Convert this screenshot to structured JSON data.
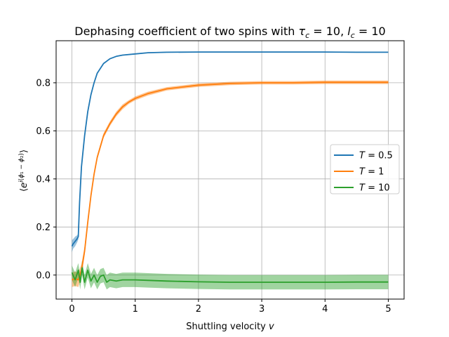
{
  "chart_data": {
    "type": "line",
    "title": "Dephasing coefficient of two spins with τc = 10, lc = 10",
    "title_parts": {
      "prefix": "Dephasing coefficient of two spins with ",
      "tau_sym": "τ",
      "tau_sub": "c",
      "tau_val": " = 10, ",
      "l_sym": "l",
      "l_sub": "c",
      "l_val": " = 10"
    },
    "xlabel": "Shuttling velocity v",
    "xlabel_parts": {
      "text": "Shuttling velocity ",
      "var": "v"
    },
    "ylabel": "⟨e^{i(ϕ1 − ϕ2)}⟩",
    "xlim": [
      -0.25,
      5.25
    ],
    "ylim": [
      -0.1,
      0.975
    ],
    "grid": true,
    "legend_position": "center-right",
    "x_ticks": [
      0,
      1,
      2,
      3,
      4,
      5
    ],
    "x_tick_labels": [
      "0",
      "1",
      "2",
      "3",
      "4",
      "5"
    ],
    "y_ticks": [
      0.0,
      0.2,
      0.4,
      0.6,
      0.8
    ],
    "y_tick_labels": [
      "0.0",
      "0.2",
      "0.4",
      "0.6",
      "0.8"
    ],
    "series": [
      {
        "name": "T = 0.5",
        "legend_label": {
          "var": "T",
          "val": " = 0.5"
        },
        "color": "#1f77b4",
        "x": [
          0,
          0.02,
          0.05,
          0.08,
          0.1,
          0.12,
          0.15,
          0.2,
          0.25,
          0.3,
          0.35,
          0.4,
          0.5,
          0.6,
          0.7,
          0.8,
          1.0,
          1.2,
          1.5,
          2.0,
          2.5,
          3.0,
          3.5,
          4.0,
          4.5,
          5.0
        ],
        "y": [
          0.12,
          0.13,
          0.14,
          0.15,
          0.16,
          0.3,
          0.45,
          0.58,
          0.68,
          0.75,
          0.8,
          0.84,
          0.88,
          0.9,
          0.91,
          0.915,
          0.92,
          0.925,
          0.927,
          0.928,
          0.928,
          0.928,
          0.928,
          0.928,
          0.927,
          0.927
        ],
        "band": [
          0.025,
          0.02,
          0.02,
          0.015,
          0.012,
          0.01,
          0.008,
          0.006,
          0.004,
          0.003,
          0.003,
          0.002,
          0.002,
          0.002,
          0.002,
          0.002,
          0.002,
          0.002,
          0.002,
          0.002,
          0.002,
          0.002,
          0.002,
          0.002,
          0.002,
          0.002
        ]
      },
      {
        "name": "T = 1",
        "legend_label": {
          "var": "T",
          "val": " = 1"
        },
        "color": "#ff7f0e",
        "x": [
          0,
          0.05,
          0.1,
          0.15,
          0.2,
          0.25,
          0.3,
          0.35,
          0.4,
          0.5,
          0.6,
          0.7,
          0.8,
          0.9,
          1.0,
          1.2,
          1.5,
          2.0,
          2.5,
          3.0,
          3.5,
          4.0,
          4.5,
          5.0
        ],
        "y": [
          -0.02,
          -0.015,
          -0.02,
          0.02,
          0.1,
          0.22,
          0.33,
          0.42,
          0.49,
          0.58,
          0.63,
          0.67,
          0.7,
          0.72,
          0.735,
          0.755,
          0.775,
          0.79,
          0.797,
          0.8,
          0.8,
          0.802,
          0.802,
          0.802
        ],
        "band": [
          0.03,
          0.03,
          0.03,
          0.025,
          0.02,
          0.015,
          0.012,
          0.01,
          0.01,
          0.01,
          0.01,
          0.01,
          0.01,
          0.008,
          0.008,
          0.008,
          0.007,
          0.007,
          0.007,
          0.007,
          0.007,
          0.007,
          0.007,
          0.007
        ]
      },
      {
        "name": "T = 10",
        "legend_label": {
          "var": "T",
          "val": " = 10"
        },
        "color": "#2ca02c",
        "x": [
          0,
          0.05,
          0.1,
          0.13,
          0.16,
          0.2,
          0.25,
          0.3,
          0.35,
          0.4,
          0.45,
          0.5,
          0.55,
          0.6,
          0.7,
          0.8,
          1.0,
          1.2,
          1.5,
          2.0,
          2.5,
          3.0,
          3.5,
          4.0,
          4.5,
          5.0
        ],
        "y": [
          0.01,
          -0.02,
          0.02,
          -0.03,
          0.03,
          -0.03,
          0.02,
          -0.025,
          0.0,
          -0.03,
          -0.005,
          0.0,
          -0.03,
          -0.02,
          -0.025,
          -0.02,
          -0.02,
          -0.022,
          -0.025,
          -0.028,
          -0.03,
          -0.03,
          -0.03,
          -0.03,
          -0.029,
          -0.029
        ],
        "band": [
          0.03,
          0.03,
          0.03,
          0.03,
          0.03,
          0.03,
          0.03,
          0.03,
          0.03,
          0.03,
          0.03,
          0.03,
          0.03,
          0.03,
          0.03,
          0.03,
          0.03,
          0.03,
          0.03,
          0.03,
          0.03,
          0.03,
          0.03,
          0.03,
          0.03,
          0.03
        ]
      }
    ]
  }
}
